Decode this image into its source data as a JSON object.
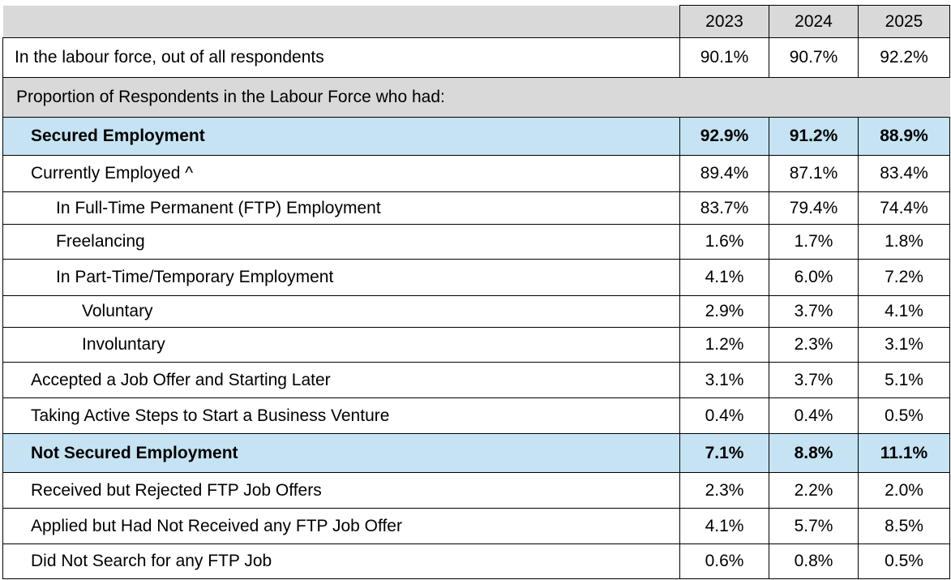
{
  "table": {
    "header": {
      "label": "",
      "years": [
        "2023",
        "2024",
        "2025"
      ]
    },
    "rows": [
      {
        "kind": "normal",
        "indent": 0,
        "label": "In the labour force, out of all respondents",
        "values": [
          "90.1%",
          "90.7%",
          "92.2%"
        ]
      },
      {
        "kind": "section",
        "indent": 0,
        "label": "Proportion of Respondents in the Labour Force who had:",
        "values": []
      },
      {
        "kind": "highlight",
        "indent": 1,
        "label": "Secured Employment",
        "values": [
          "92.9%",
          "91.2%",
          "88.9%"
        ]
      },
      {
        "kind": "normal",
        "indent": 1,
        "label": "Currently Employed ^",
        "values": [
          "89.4%",
          "87.1%",
          "83.4%"
        ]
      },
      {
        "kind": "normal",
        "indent": 2,
        "label": "In Full-Time Permanent (FTP) Employment",
        "values": [
          "83.7%",
          "79.4%",
          "74.4%"
        ]
      },
      {
        "kind": "normal",
        "indent": 2,
        "label": "Freelancing",
        "values": [
          "1.6%",
          "1.7%",
          "1.8%"
        ]
      },
      {
        "kind": "normal",
        "indent": 2,
        "label": "In Part-Time/Temporary Employment",
        "values": [
          "4.1%",
          "6.0%",
          "7.2%"
        ]
      },
      {
        "kind": "normal",
        "indent": 3,
        "label": "Voluntary",
        "values": [
          "2.9%",
          "3.7%",
          "4.1%"
        ]
      },
      {
        "kind": "normal",
        "indent": 3,
        "label": "Involuntary",
        "values": [
          "1.2%",
          "2.3%",
          "3.1%"
        ]
      },
      {
        "kind": "normal",
        "indent": 1,
        "label": "Accepted a Job Offer and Starting Later",
        "values": [
          "3.1%",
          "3.7%",
          "5.1%"
        ]
      },
      {
        "kind": "normal",
        "indent": 1,
        "label": "Taking Active Steps to Start a Business Venture",
        "values": [
          "0.4%",
          "0.4%",
          "0.5%"
        ]
      },
      {
        "kind": "highlight",
        "indent": 1,
        "label": "Not Secured Employment",
        "values": [
          "7.1%",
          "8.8%",
          "11.1%"
        ]
      },
      {
        "kind": "normal",
        "indent": 1,
        "label": "Received but Rejected FTP Job Offers",
        "values": [
          "2.3%",
          "2.2%",
          "2.0%"
        ]
      },
      {
        "kind": "normal",
        "indent": 1,
        "label": "Applied but Had Not Received any FTP Job Offer",
        "values": [
          "4.1%",
          "5.7%",
          "8.5%"
        ]
      },
      {
        "kind": "normal",
        "indent": 1,
        "label": "Did Not Search for any FTP Job",
        "values": [
          "0.6%",
          "0.8%",
          "0.5%"
        ]
      }
    ],
    "colors": {
      "header_bg": "#d9d9d9",
      "section_bg": "#d9d9d9",
      "highlight_bg": "#c5e3f3",
      "border": "#000000"
    }
  }
}
